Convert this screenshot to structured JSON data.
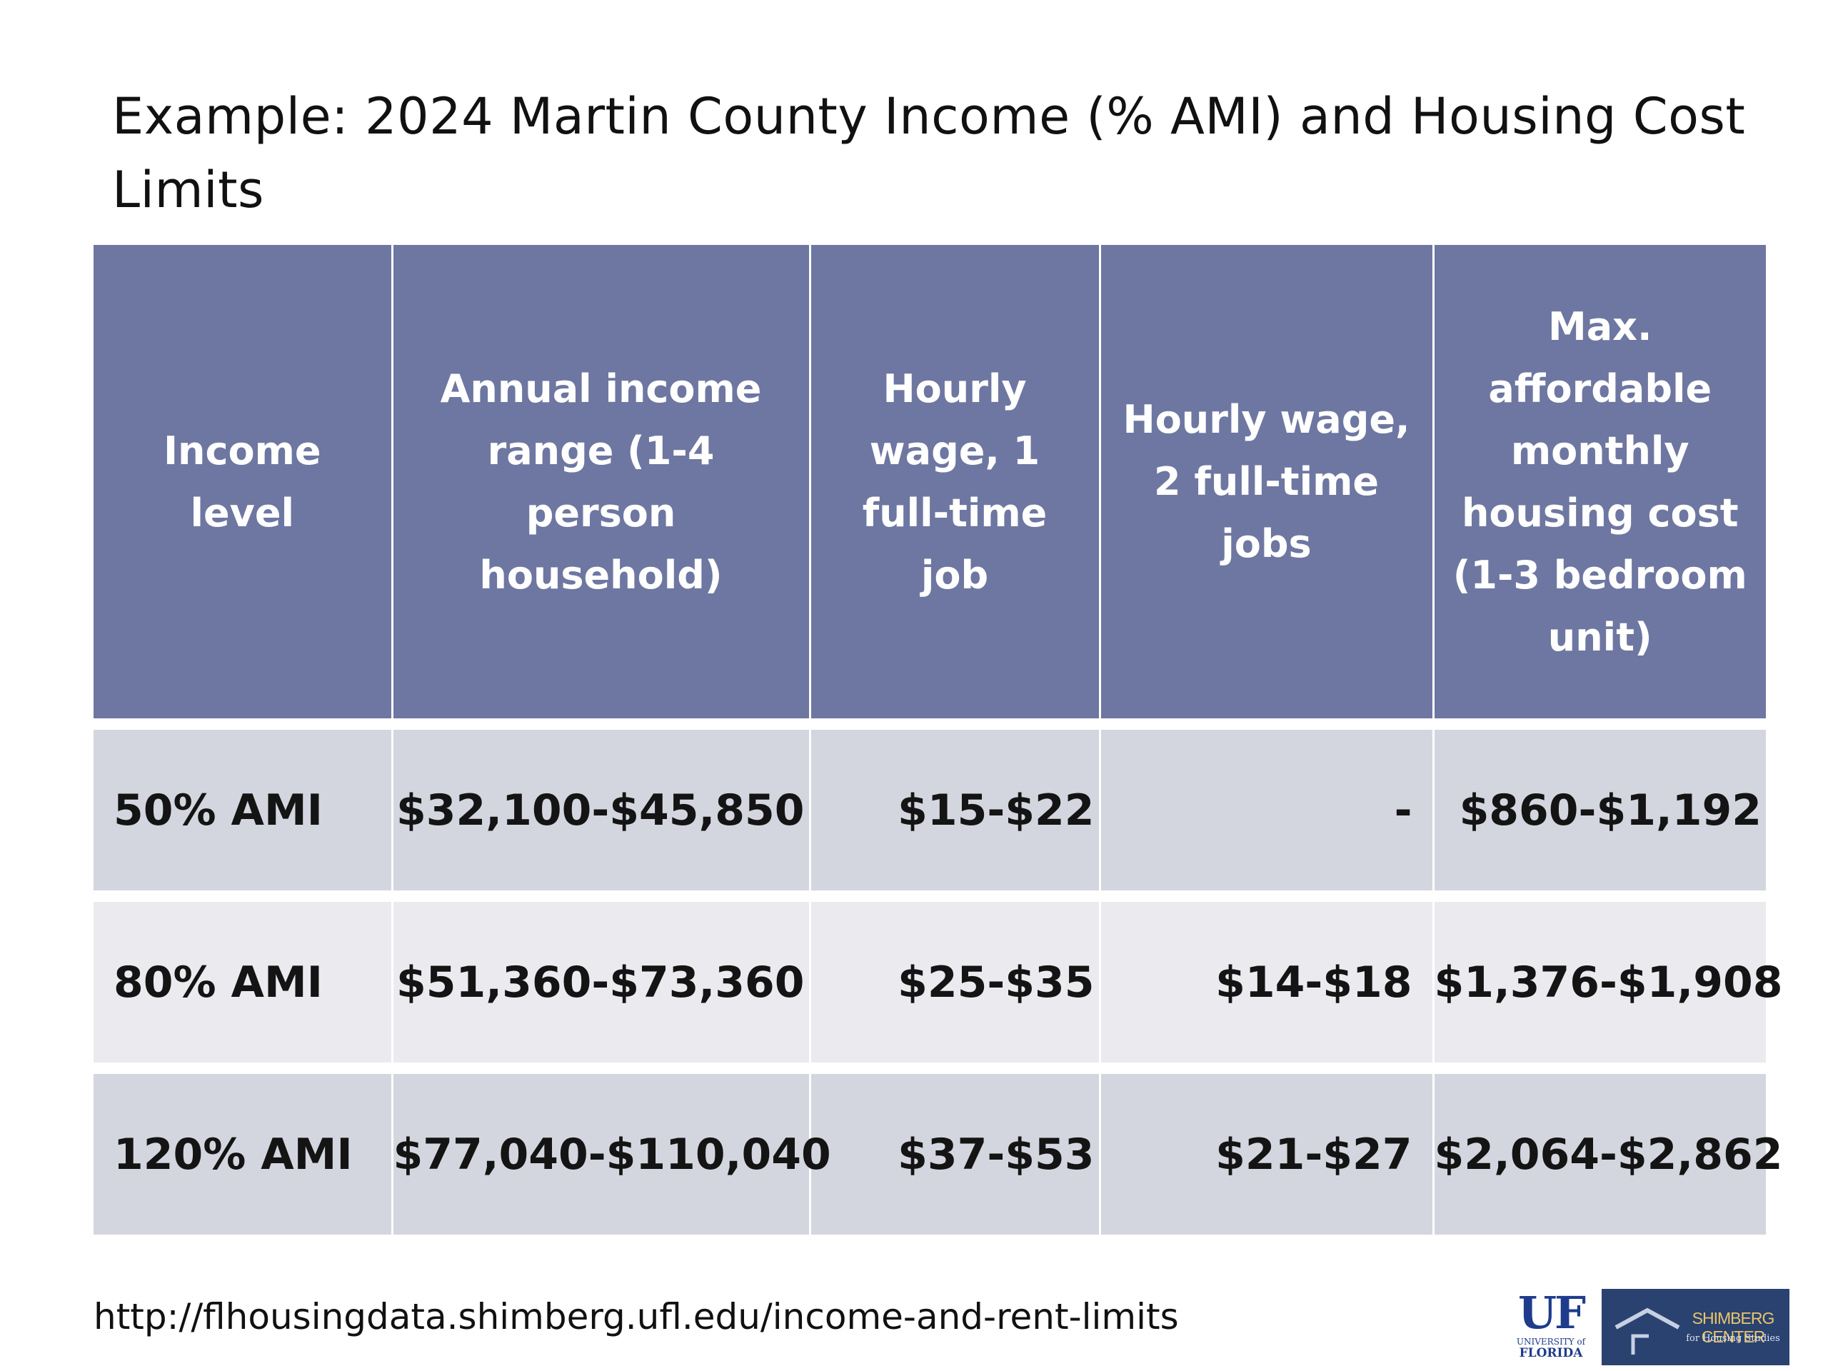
{
  "title": "Example: 2024 Martin County Income (% AMI) and Housing Cost Limits",
  "table": {
    "headers": [
      "Income level",
      "Annual income range (1-4 person household)",
      "Hourly wage, 1 full-time job",
      "Hourly wage, 2 full-time jobs",
      "Max. affordable monthly housing cost (1-3 bedroom unit)"
    ],
    "rows": [
      {
        "income_level": "50% AMI",
        "annual_income_range": "$32,100-$45,850",
        "hourly_wage_1_job": "$15-$22",
        "hourly_wage_2_jobs": "-",
        "max_housing_cost": "$860-$1,192"
      },
      {
        "income_level": "80% AMI",
        "annual_income_range": "$51,360-$73,360",
        "hourly_wage_1_job": "$25-$35",
        "hourly_wage_2_jobs": "$14-$18",
        "max_housing_cost": "$1,376-$1,908"
      },
      {
        "income_level": "120% AMI",
        "annual_income_range": "$77,040-$110,040",
        "hourly_wage_1_job": "$37-$53",
        "hourly_wage_2_jobs": "$21-$27",
        "max_housing_cost": "$2,064-$2,862"
      }
    ]
  },
  "source_url": "http://flhousingdata.shimberg.ufl.edu/income-and-rent-limits",
  "logos": {
    "uf": {
      "mark": "UF",
      "line1": "UNIVERSITY of",
      "line2": "FLORIDA"
    },
    "shimberg": {
      "name": "SHIMBERG CENTER",
      "tagline": "for Housing Studies"
    }
  },
  "colors": {
    "header_bg": "#6e77a1",
    "row_dark": "#d4d6df",
    "row_light": "#ebebef",
    "uf_blue": "#1f3b8c",
    "shimberg_bg": "#2a4270",
    "shimberg_gold": "#e9c56a"
  },
  "icons": [
    "shimberg-house-icon"
  ]
}
